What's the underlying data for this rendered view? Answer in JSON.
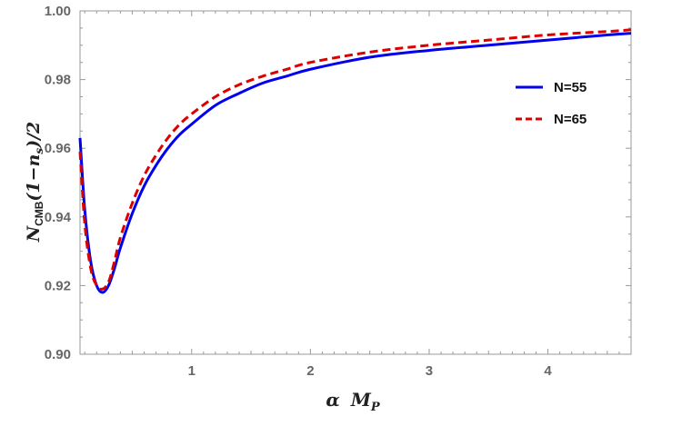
{
  "chart_data": {
    "type": "line",
    "xlim": [
      0.06,
      4.7
    ],
    "ylim": [
      0.9,
      1.0
    ],
    "x_ticks": [
      1,
      2,
      3,
      4
    ],
    "x_tick_labels": [
      "1",
      "2",
      "3",
      "4"
    ],
    "y_ticks": [
      0.9,
      0.92,
      0.94,
      0.96,
      0.98,
      1.0
    ],
    "y_tick_labels": [
      "0.90",
      "0.92",
      "0.94",
      "0.96",
      "0.98",
      "1.00"
    ],
    "xlabel": {
      "greek": "α",
      "main": "M",
      "sub": "P"
    },
    "ylabel": {
      "main": "N",
      "sub": "CMB",
      "mid": "(1−n",
      "sub2": "s",
      "tail": ")/2"
    },
    "legend_position": "right",
    "grid": false,
    "series": [
      {
        "name": "N=55",
        "color": "#0000ee",
        "style": "solid",
        "x": [
          0.06,
          0.1,
          0.15,
          0.2,
          0.25,
          0.3,
          0.35,
          0.4,
          0.5,
          0.6,
          0.7,
          0.8,
          0.9,
          1.0,
          1.2,
          1.4,
          1.6,
          1.8,
          2.0,
          2.5,
          3.0,
          3.5,
          4.0,
          4.5,
          4.7
        ],
        "values": [
          0.963,
          0.942,
          0.927,
          0.92,
          0.918,
          0.92,
          0.925,
          0.931,
          0.941,
          0.949,
          0.955,
          0.96,
          0.964,
          0.967,
          0.9725,
          0.976,
          0.979,
          0.981,
          0.983,
          0.9865,
          0.9885,
          0.99,
          0.9915,
          0.993,
          0.9935
        ]
      },
      {
        "name": "N=65",
        "color": "#dd0000",
        "style": "dashed",
        "x": [
          0.06,
          0.1,
          0.15,
          0.2,
          0.25,
          0.3,
          0.35,
          0.4,
          0.5,
          0.6,
          0.7,
          0.8,
          0.9,
          1.0,
          1.2,
          1.4,
          1.6,
          1.8,
          2.0,
          2.5,
          3.0,
          3.5,
          4.0,
          4.5,
          4.7
        ],
        "values": [
          0.959,
          0.938,
          0.925,
          0.92,
          0.919,
          0.921,
          0.927,
          0.934,
          0.944,
          0.952,
          0.958,
          0.963,
          0.967,
          0.97,
          0.975,
          0.9785,
          0.981,
          0.983,
          0.985,
          0.988,
          0.99,
          0.9915,
          0.993,
          0.994,
          0.9945
        ]
      }
    ]
  }
}
